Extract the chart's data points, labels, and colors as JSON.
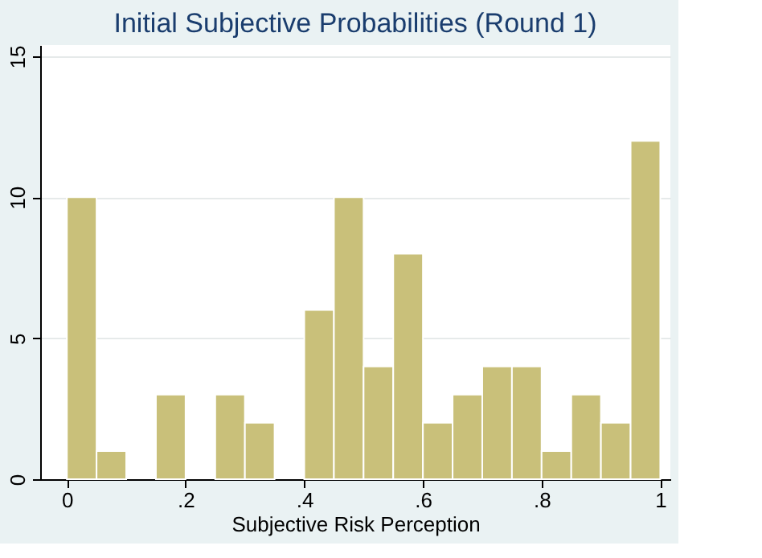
{
  "chart_data": {
    "type": "histogram",
    "title": "Initial Subjective Probabilities (Round 1)",
    "xlabel": "Subjective Risk Perception",
    "bins": [
      0,
      0.05,
      0.1,
      0.15,
      0.2,
      0.25,
      0.3,
      0.35,
      0.4,
      0.45,
      0.5,
      0.55,
      0.6,
      0.65,
      0.7,
      0.75,
      0.8,
      0.85,
      0.9,
      0.95,
      1
    ],
    "values": [
      10,
      1,
      0,
      3,
      0,
      3,
      2,
      0,
      6,
      10,
      4,
      8,
      2,
      3,
      4,
      4,
      1,
      3,
      2,
      12
    ],
    "color": "#c9c07a",
    "xlim": [
      -0.045,
      1.017
    ],
    "xticks": [
      0,
      {
        "value": 0.2,
        "label": ".2"
      },
      {
        "value": 0.4,
        "label": ".4"
      },
      {
        "value": 0.6,
        "label": ".6"
      },
      {
        "value": 0.8,
        "label": ".8"
      },
      1
    ],
    "ylim": [
      0,
      15.4
    ],
    "yticks": [
      0,
      5,
      10,
      15
    ],
    "grid": "y"
  }
}
